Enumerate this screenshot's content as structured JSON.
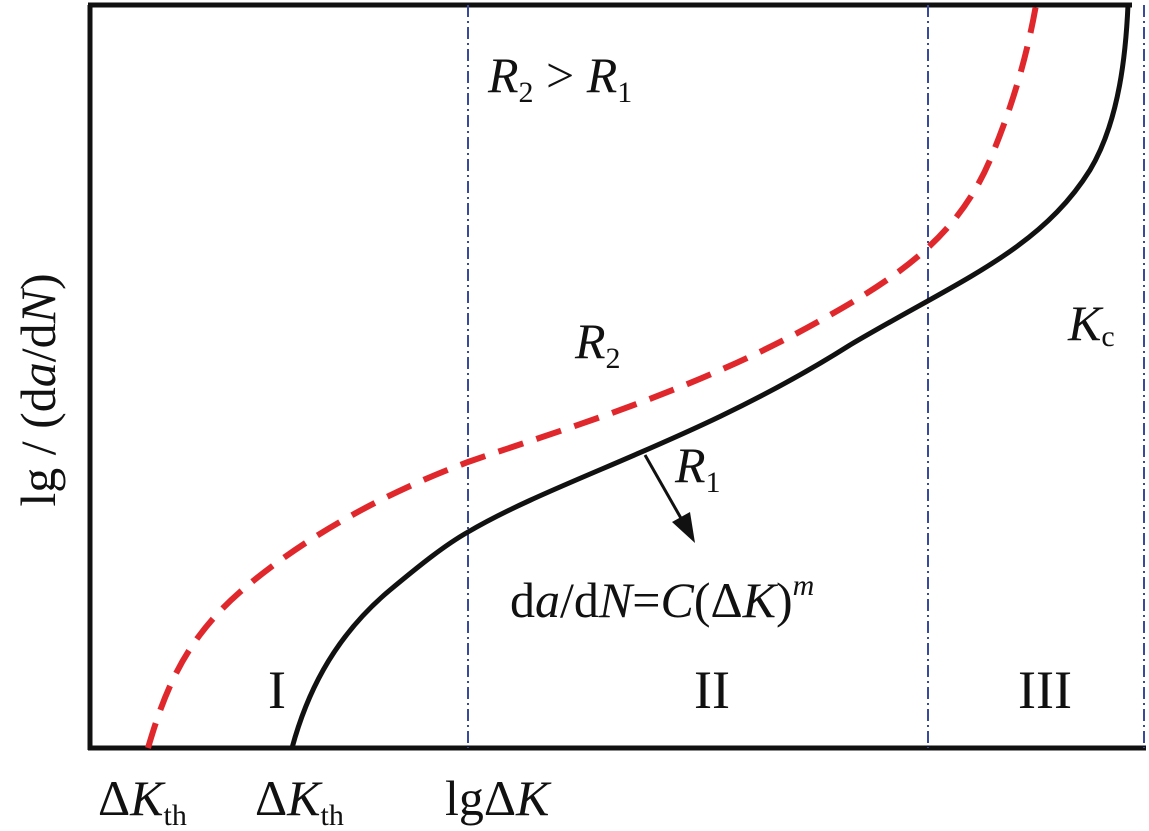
{
  "y_axis_label": [
    "lg / (d",
    "a",
    "/d",
    "N",
    ")"
  ],
  "comparison": [
    "R",
    "2",
    " > ",
    "R",
    "1"
  ],
  "curve_labels": {
    "upper": [
      "R",
      "2"
    ],
    "lower": [
      "R",
      "1"
    ]
  },
  "critical_label": [
    "K",
    "c"
  ],
  "regions": [
    "I",
    "II",
    "III"
  ],
  "paris_law": [
    "d",
    "a",
    "/d",
    "N",
    "=",
    "C",
    "(Δ",
    "K",
    ")",
    "m"
  ],
  "x_labels": {
    "threshold_2": [
      "Δ",
      "K",
      "th"
    ],
    "threshold_1": [
      "Δ",
      "K",
      "th"
    ],
    "axis": [
      "lgΔ",
      "K"
    ]
  }
}
